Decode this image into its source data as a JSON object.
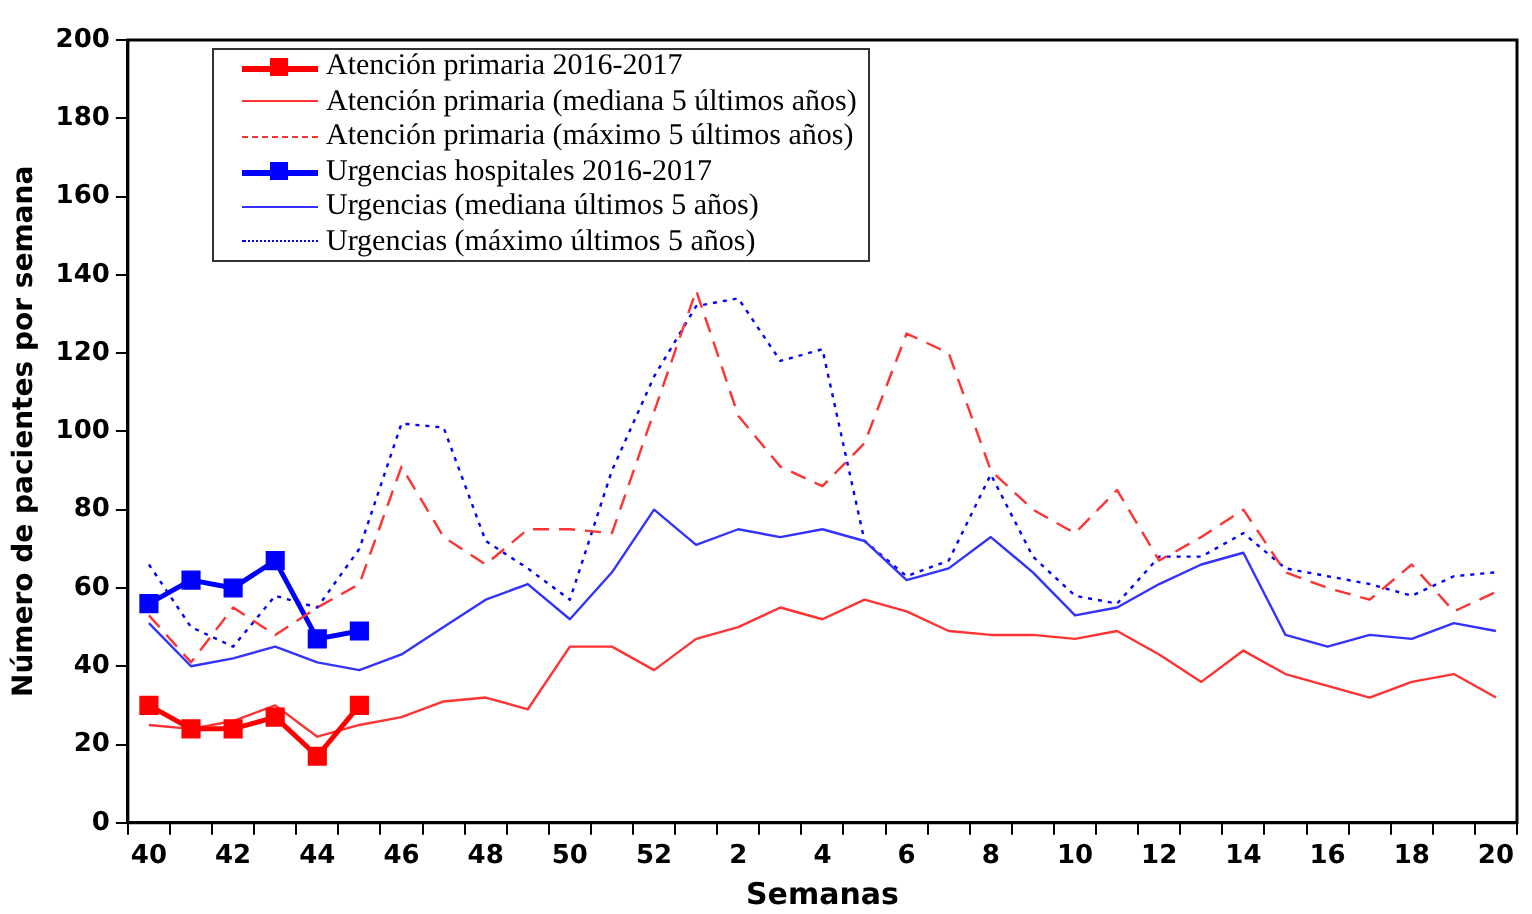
{
  "chart_data": {
    "type": "line",
    "xlabel": "Semanas",
    "ylabel": "Número de pacientes por semana",
    "categories": [
      "40",
      null,
      "42",
      null,
      "44",
      null,
      "46",
      null,
      "48",
      null,
      "50",
      null,
      "52",
      null,
      "2",
      null,
      "4",
      null,
      "6",
      null,
      "8",
      null,
      "10",
      null,
      "12",
      null,
      "14",
      null,
      "16",
      null,
      "18",
      null,
      "20"
    ],
    "ylim": [
      0,
      200
    ],
    "yticks": [
      0,
      20,
      40,
      60,
      80,
      100,
      120,
      140,
      160,
      180,
      200
    ],
    "grid": false,
    "legend": "top left",
    "series": [
      {
        "name": "Atención primaria 2016-2017",
        "color": "#ff0000",
        "marker": "square",
        "line_style": "solid",
        "values": [
          30,
          24,
          24,
          27,
          17,
          30,
          null,
          null,
          null,
          null,
          null,
          null,
          null,
          null,
          null,
          null,
          null,
          null,
          null,
          null,
          null,
          null,
          null,
          null,
          null,
          null,
          null,
          null,
          null,
          null,
          null,
          null,
          null
        ]
      },
      {
        "name": "Atención primaria (mediana 5 últimos años)",
        "color": "#ff3333",
        "marker": "none",
        "line_style": "solid",
        "values": [
          25,
          24,
          26,
          30,
          22,
          25,
          27,
          31,
          32,
          29,
          45,
          45,
          39,
          47,
          50,
          55,
          52,
          57,
          54,
          49,
          48,
          48,
          47,
          49,
          43,
          36,
          44,
          38,
          35,
          32,
          36,
          38,
          32
        ]
      },
      {
        "name": "Atención primaria (máximo 5 últimos años)",
        "color": "#ff3333",
        "marker": "none",
        "line_style": "dashed",
        "values": [
          53,
          41,
          55,
          48,
          55,
          61,
          91,
          73,
          66,
          75,
          75,
          74,
          105,
          136,
          104,
          91,
          86,
          97,
          125,
          120,
          90,
          80,
          74,
          85,
          67,
          73,
          80,
          64,
          60,
          57,
          66,
          54,
          59
        ]
      },
      {
        "name": "Urgencias hospitales 2016-2017",
        "color": "#0000ff",
        "marker": "square",
        "line_style": "solid",
        "values": [
          56,
          62,
          60,
          67,
          47,
          49,
          null,
          null,
          null,
          null,
          null,
          null,
          null,
          null,
          null,
          null,
          null,
          null,
          null,
          null,
          null,
          null,
          null,
          null,
          null,
          null,
          null,
          null,
          null,
          null,
          null,
          null,
          null
        ]
      },
      {
        "name": "Urgencias (mediana últimos 5 años)",
        "color": "#3333ff",
        "marker": "none",
        "line_style": "solid",
        "values": [
          51,
          40,
          42,
          45,
          41,
          39,
          43,
          50,
          57,
          61,
          52,
          64,
          80,
          71,
          75,
          73,
          75,
          72,
          62,
          65,
          73,
          64,
          53,
          55,
          61,
          66,
          69,
          48,
          45,
          48,
          47,
          51,
          49
        ]
      },
      {
        "name": "Urgencias (máximo últimos 5 años)",
        "color": "#0000ff",
        "marker": "none",
        "line_style": "dotted",
        "values": [
          66,
          50,
          45,
          58,
          55,
          70,
          102,
          101,
          72,
          65,
          57,
          90,
          114,
          132,
          134,
          118,
          121,
          72,
          63,
          67,
          89,
          68,
          58,
          56,
          68,
          68,
          74,
          65,
          63,
          61,
          58,
          63,
          64
        ]
      }
    ]
  }
}
